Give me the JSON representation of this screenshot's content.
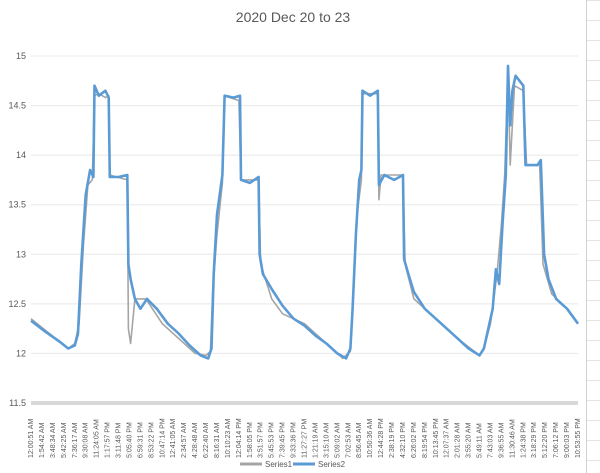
{
  "chart_data": {
    "type": "line",
    "title": "2020 Dec 20 to 23",
    "xlabel": "",
    "ylabel": "",
    "ylim": [
      11.5,
      15
    ],
    "yticks": [
      "11.5",
      "12",
      "12.5",
      "13",
      "13.5",
      "14",
      "14.5",
      "15"
    ],
    "grid": true,
    "legend": "bottom",
    "x_tick_labels": [
      "12:00:51 AM",
      "1:54:42 AM",
      "3:48:34 AM",
      "5:42:25 AM",
      "7:36:17 AM",
      "9:30:08 AM",
      "11:24:05 AM",
      "1:17:57 PM",
      "3:11:48 PM",
      "5:05:40 PM",
      "6:59:31 PM",
      "8:53:22 PM",
      "10:47:14 PM",
      "12:41:05 AM",
      "2:34:57 AM",
      "4:28:48 AM",
      "6:22:40 AM",
      "8:16:31 AM",
      "10:10:23 AM",
      "12:04:14 PM",
      "1:58:05 PM",
      "3:51:57 PM",
      "5:45:53 PM",
      "7:39:45 PM",
      "9:33:36 PM",
      "11:27:27 PM",
      "1:21:19 AM",
      "3:15:10 AM",
      "5:09:02 AM",
      "7:02:53 AM",
      "8:56:45 AM",
      "10:50:36 AM",
      "12:44:28 PM",
      "2:38:19 PM",
      "4:32:10 PM",
      "6:26:02 PM",
      "8:19:54 PM",
      "10:13:45 PM",
      "12:07:37 AM",
      "2:01:28 AM",
      "3:55:20 AM",
      "5:49:11 AM",
      "7:43:03 AM",
      "9:36:55 AM",
      "11:30:46 AM",
      "1:24:38 PM",
      "3:18:29 PM",
      "5:12:20 PM",
      "7:06:12 PM",
      "9:00:03 PM",
      "10:53:55 PM"
    ],
    "x_index_max": 50,
    "series": [
      {
        "name": "Series1",
        "color": "#a5a5a5",
        "points": [
          [
            0,
            12.35
          ],
          [
            2.6,
            12.12
          ],
          [
            3.4,
            12.05
          ],
          [
            4,
            12.1
          ],
          [
            4.4,
            12.3
          ],
          [
            4.8,
            13.1
          ],
          [
            5.2,
            13.7
          ],
          [
            5.6,
            13.75
          ],
          [
            5.8,
            14.6
          ],
          [
            6.2,
            14.62
          ],
          [
            6.8,
            14.58
          ],
          [
            7.1,
            14.6
          ],
          [
            7.2,
            13.8
          ],
          [
            8.8,
            13.75
          ],
          [
            8.9,
            12.25
          ],
          [
            9.1,
            12.1
          ],
          [
            9.5,
            12.55
          ],
          [
            10.5,
            12.55
          ],
          [
            12,
            12.3
          ],
          [
            14,
            12.1
          ],
          [
            15,
            12.0
          ],
          [
            16,
            11.98
          ],
          [
            16.4,
            12.02
          ],
          [
            16.6,
            12.6
          ],
          [
            17,
            13.2
          ],
          [
            17.5,
            13.72
          ],
          [
            17.7,
            14.6
          ],
          [
            19,
            14.55
          ],
          [
            19.2,
            13.75
          ],
          [
            20.8,
            13.75
          ],
          [
            21,
            12.9
          ],
          [
            22,
            12.55
          ],
          [
            23,
            12.4
          ],
          [
            25,
            12.3
          ],
          [
            27,
            12.1
          ],
          [
            28.5,
            11.95
          ],
          [
            29.2,
            12.02
          ],
          [
            29.4,
            12.5
          ],
          [
            29.8,
            13.4
          ],
          [
            30.2,
            13.75
          ],
          [
            30.3,
            14.62
          ],
          [
            31.7,
            14.62
          ],
          [
            31.8,
            13.55
          ],
          [
            32,
            13.8
          ],
          [
            34,
            13.8
          ],
          [
            34.2,
            12.9
          ],
          [
            35,
            12.55
          ],
          [
            37,
            12.35
          ],
          [
            39,
            12.15
          ],
          [
            41,
            11.98
          ],
          [
            41.4,
            12.05
          ],
          [
            42,
            12.3
          ],
          [
            42.6,
            12.8
          ],
          [
            43,
            13.3
          ],
          [
            43.3,
            13.8
          ],
          [
            43.6,
            14.85
          ],
          [
            43.8,
            13.9
          ],
          [
            44.2,
            14.7
          ],
          [
            45,
            14.65
          ],
          [
            45.3,
            13.9
          ],
          [
            46.5,
            13.9
          ],
          [
            46.8,
            12.9
          ],
          [
            47.6,
            12.6
          ],
          [
            49,
            12.45
          ],
          [
            50,
            12.3
          ]
        ]
      },
      {
        "name": "Series2",
        "color": "#5b9bd5",
        "points": [
          [
            0,
            12.33
          ],
          [
            1.3,
            12.22
          ],
          [
            2.6,
            12.12
          ],
          [
            3.4,
            12.05
          ],
          [
            4,
            12.08
          ],
          [
            4.3,
            12.2
          ],
          [
            4.6,
            12.9
          ],
          [
            5,
            13.6
          ],
          [
            5.4,
            13.85
          ],
          [
            5.7,
            13.78
          ],
          [
            5.8,
            14.7
          ],
          [
            6.2,
            14.6
          ],
          [
            6.8,
            14.65
          ],
          [
            7.1,
            14.58
          ],
          [
            7.2,
            13.78
          ],
          [
            8,
            13.78
          ],
          [
            8.8,
            13.8
          ],
          [
            8.9,
            12.9
          ],
          [
            9.1,
            12.75
          ],
          [
            9.5,
            12.55
          ],
          [
            10,
            12.45
          ],
          [
            10.6,
            12.55
          ],
          [
            11.5,
            12.45
          ],
          [
            12.5,
            12.3
          ],
          [
            13.5,
            12.2
          ],
          [
            14.5,
            12.08
          ],
          [
            15.5,
            11.98
          ],
          [
            16.2,
            11.95
          ],
          [
            16.5,
            12.05
          ],
          [
            16.7,
            12.8
          ],
          [
            17,
            13.4
          ],
          [
            17.5,
            13.8
          ],
          [
            17.7,
            14.6
          ],
          [
            18.5,
            14.58
          ],
          [
            19.1,
            14.6
          ],
          [
            19.2,
            13.75
          ],
          [
            20,
            13.72
          ],
          [
            20.8,
            13.78
          ],
          [
            20.9,
            13.0
          ],
          [
            21.2,
            12.8
          ],
          [
            22,
            12.65
          ],
          [
            23,
            12.48
          ],
          [
            24,
            12.35
          ],
          [
            25,
            12.28
          ],
          [
            26,
            12.18
          ],
          [
            27,
            12.1
          ],
          [
            28,
            12.0
          ],
          [
            28.8,
            11.95
          ],
          [
            29.2,
            12.05
          ],
          [
            29.4,
            12.45
          ],
          [
            29.7,
            13.2
          ],
          [
            30,
            13.75
          ],
          [
            30.2,
            13.85
          ],
          [
            30.3,
            14.65
          ],
          [
            31,
            14.6
          ],
          [
            31.7,
            14.65
          ],
          [
            31.8,
            13.7
          ],
          [
            32.3,
            13.8
          ],
          [
            33.2,
            13.75
          ],
          [
            34,
            13.8
          ],
          [
            34.1,
            12.95
          ],
          [
            34.5,
            12.8
          ],
          [
            35,
            12.62
          ],
          [
            36,
            12.45
          ],
          [
            37,
            12.35
          ],
          [
            38,
            12.25
          ],
          [
            39,
            12.15
          ],
          [
            40,
            12.05
          ],
          [
            41,
            11.98
          ],
          [
            41.4,
            12.05
          ],
          [
            41.8,
            12.25
          ],
          [
            42.2,
            12.45
          ],
          [
            42.5,
            12.85
          ],
          [
            42.8,
            12.7
          ],
          [
            43.1,
            13.3
          ],
          [
            43.4,
            13.8
          ],
          [
            43.6,
            14.9
          ],
          [
            43.8,
            14.3
          ],
          [
            44,
            14.65
          ],
          [
            44.3,
            14.8
          ],
          [
            45,
            14.7
          ],
          [
            45.2,
            13.9
          ],
          [
            45.8,
            13.9
          ],
          [
            46.3,
            13.9
          ],
          [
            46.6,
            13.95
          ],
          [
            46.9,
            13.0
          ],
          [
            47.3,
            12.75
          ],
          [
            48,
            12.55
          ],
          [
            49,
            12.45
          ],
          [
            50,
            12.3
          ]
        ]
      }
    ]
  }
}
